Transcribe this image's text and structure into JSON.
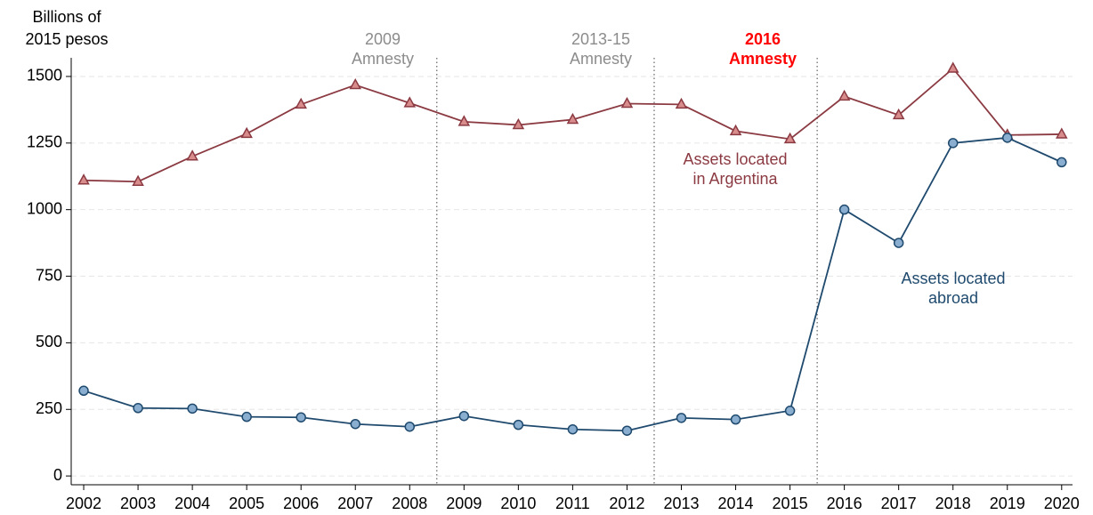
{
  "chart_data": {
    "type": "line",
    "y_label": [
      "Billions of",
      "2015 pesos"
    ],
    "x": [
      2002,
      2003,
      2004,
      2005,
      2006,
      2007,
      2008,
      2009,
      2010,
      2011,
      2012,
      2013,
      2014,
      2015,
      2016,
      2017,
      2018,
      2019,
      2020
    ],
    "series": [
      {
        "name": [
          "Assets located",
          "in Argentina"
        ],
        "color": "#8b3a42",
        "marker": "triangle",
        "marker_fill": "#d98c8c",
        "values": [
          1110,
          1105,
          1200,
          1285,
          1395,
          1468,
          1400,
          1330,
          1318,
          1338,
          1398,
          1395,
          1295,
          1265,
          1425,
          1355,
          1530,
          1280,
          1283
        ]
      },
      {
        "name": [
          "Assets located",
          "abroad"
        ],
        "color": "#1f4a6e",
        "marker": "circle",
        "marker_fill": "#8aaed0",
        "values": [
          320,
          255,
          253,
          222,
          220,
          195,
          185,
          225,
          192,
          175,
          170,
          218,
          212,
          245,
          1000,
          875,
          1250,
          1270,
          1178
        ]
      }
    ],
    "vlines": [
      2008.5,
      2012.5,
      2015.5
    ],
    "annotations": [
      {
        "lines": [
          "2009",
          "Amnesty"
        ],
        "color": "#8c8c8c",
        "bold": false
      },
      {
        "lines": [
          "2013-15",
          "Amnesty"
        ],
        "color": "#8c8c8c",
        "bold": false
      },
      {
        "lines": [
          "2016",
          "Amnesty"
        ],
        "color": "#ff0000",
        "bold": true
      }
    ],
    "xlim": [
      2001.77,
      2020.2
    ],
    "xticks": [
      2002,
      2003,
      2004,
      2005,
      2006,
      2007,
      2008,
      2009,
      2010,
      2011,
      2012,
      2013,
      2014,
      2015,
      2016,
      2017,
      2018,
      2019,
      2020
    ],
    "ylim": [
      -33,
      1570
    ],
    "yticks": [
      0,
      250,
      500,
      750,
      1000,
      1250,
      1500
    ],
    "grid": true
  }
}
